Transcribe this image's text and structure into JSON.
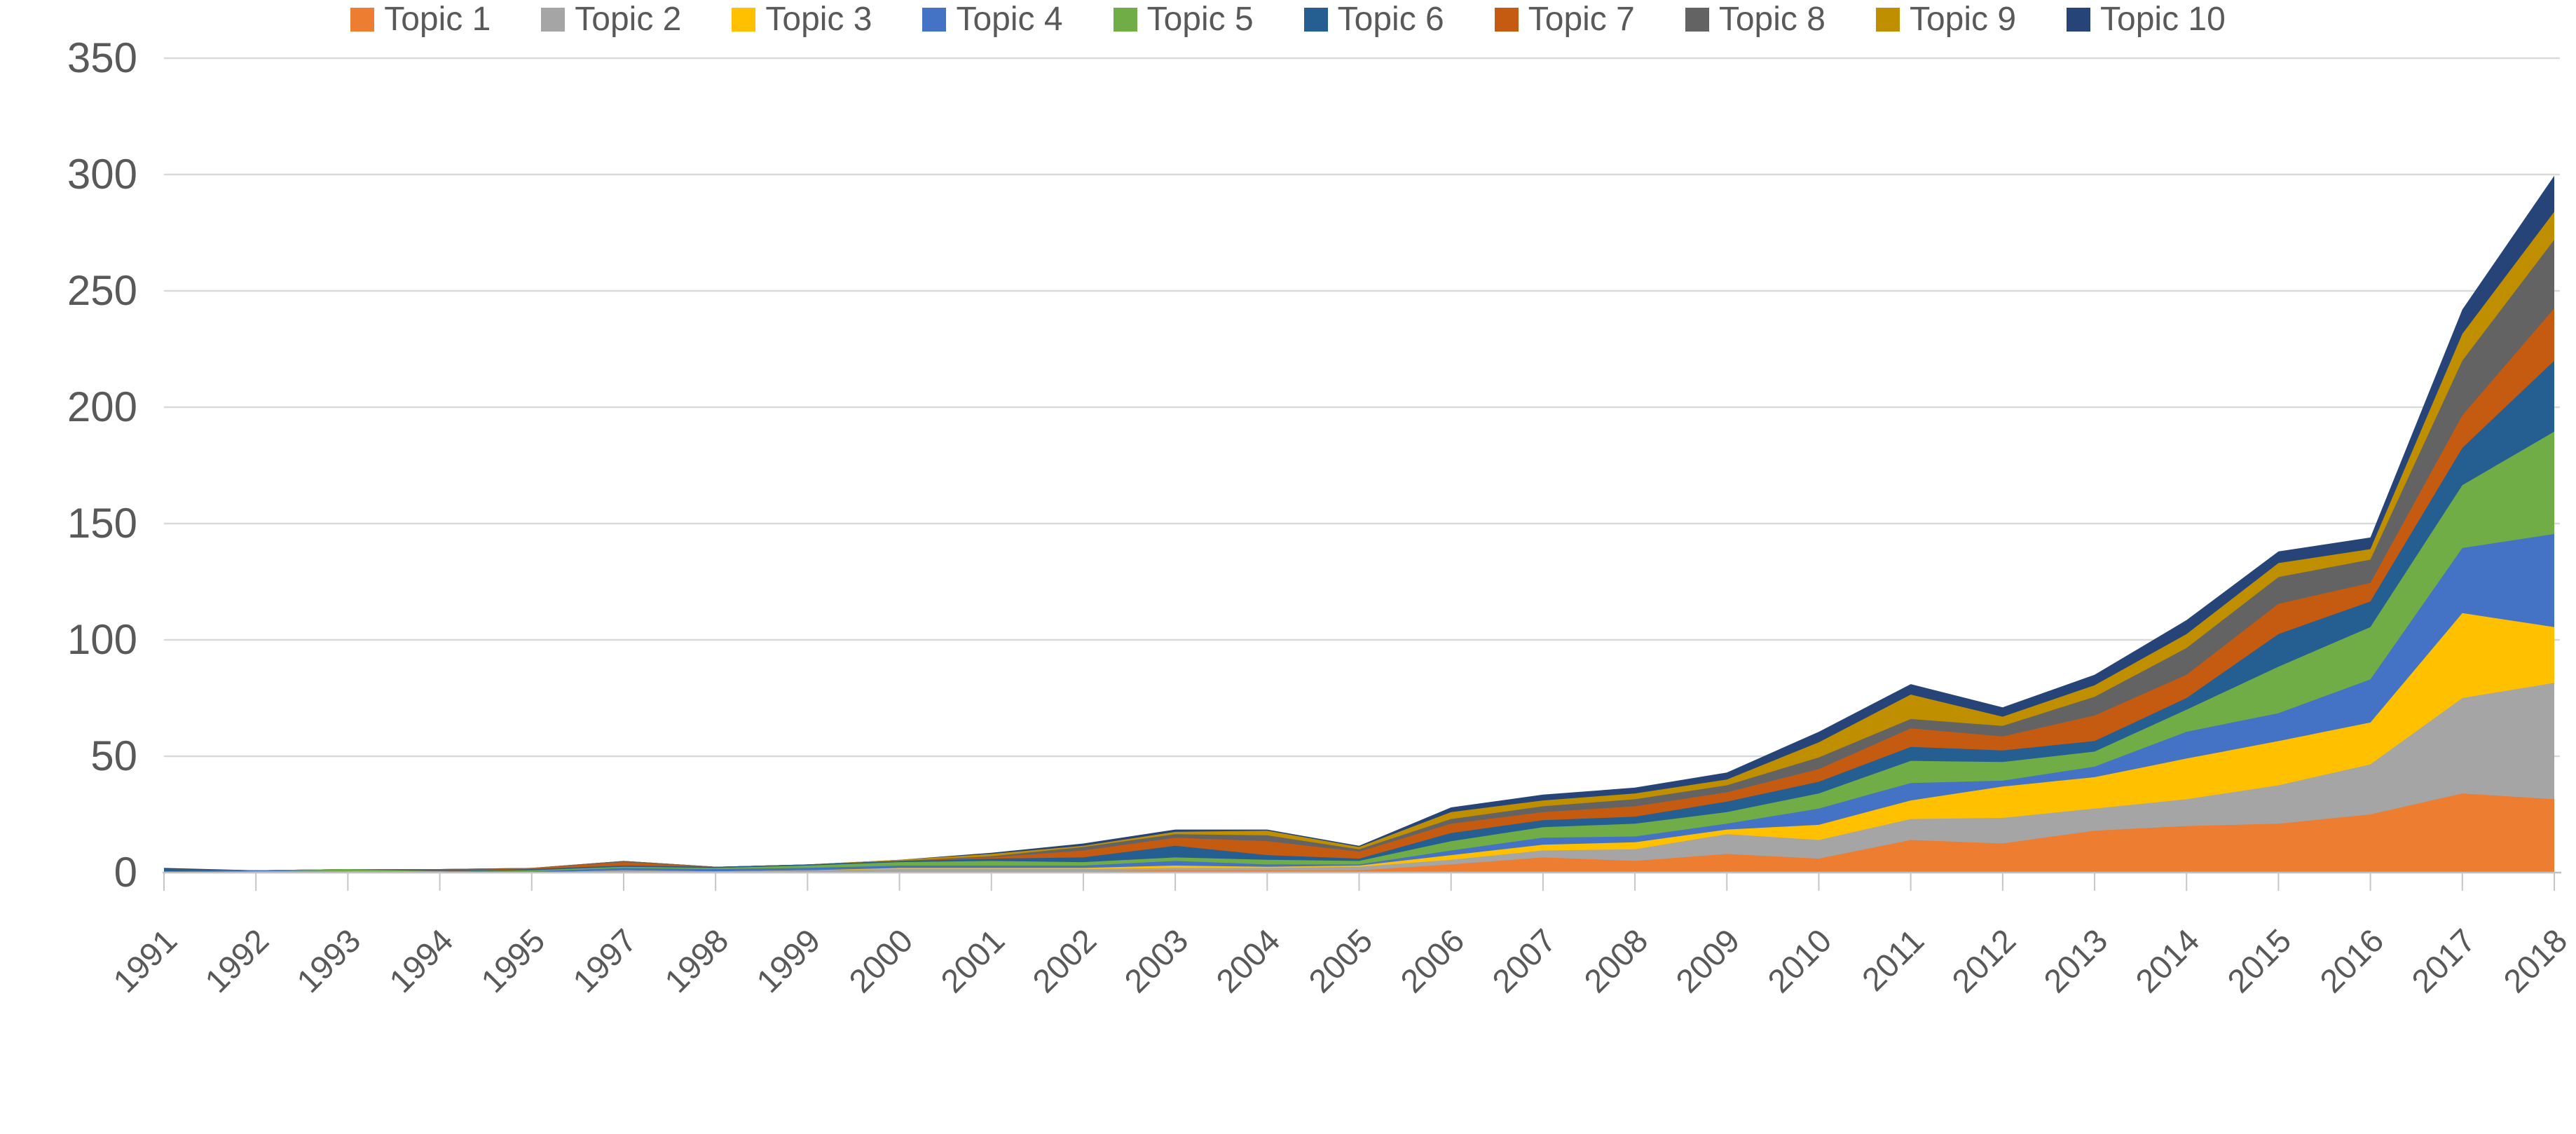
{
  "chart_data": {
    "type": "area",
    "stacked": true,
    "title": "",
    "xlabel": "",
    "ylabel": "",
    "grid": "horizontal",
    "legend_position": "bottom",
    "ylim": [
      0,
      350
    ],
    "ytick_interval": 50,
    "yticks": [
      0,
      50,
      100,
      150,
      200,
      250,
      300,
      350
    ],
    "categories": [
      "1991",
      "1992",
      "1993",
      "1994",
      "1995",
      "1997",
      "1998",
      "1999",
      "2000",
      "2001",
      "2002",
      "2003",
      "2004",
      "2005",
      "2006",
      "2007",
      "2008",
      "2009",
      "2010",
      "2011",
      "2012",
      "2013",
      "2014",
      "2015",
      "2016",
      "2017",
      "2018"
    ],
    "series": [
      {
        "name": "Topic 1",
        "color": "#ED7D31",
        "values": [
          0,
          0,
          0,
          0,
          0,
          0.5,
          0,
          0.5,
          0.5,
          0.5,
          0.5,
          1,
          1,
          1,
          3.5,
          6.5,
          5,
          8,
          6,
          14,
          12.5,
          18,
          20,
          21,
          25,
          34,
          31.5
        ]
      },
      {
        "name": "Topic 2",
        "color": "#A5A5A5",
        "values": [
          0,
          0.5,
          0.5,
          0.5,
          0,
          0.5,
          0.5,
          0.5,
          1,
          1,
          1,
          1,
          1,
          1.5,
          2,
          3,
          5,
          8.5,
          8,
          9,
          11,
          9.5,
          11.5,
          16.5,
          21.5,
          41,
          50
        ]
      },
      {
        "name": "Topic 3",
        "color": "#FFC000",
        "values": [
          0,
          0,
          0,
          0,
          0,
          0,
          0,
          0,
          0.5,
          0.5,
          0.5,
          1,
          0.5,
          0.5,
          2,
          2.5,
          3,
          2,
          6.5,
          8,
          13.5,
          13.5,
          17.5,
          19,
          18,
          36.5,
          24
        ]
      },
      {
        "name": "Topic 4",
        "color": "#4472C4",
        "values": [
          0.5,
          0.5,
          0,
          0,
          0.5,
          1,
          1,
          1,
          1,
          1,
          1,
          2,
          1,
          0.5,
          2,
          3,
          2.5,
          2.5,
          7,
          7.5,
          2.5,
          4.5,
          11.5,
          12,
          18.5,
          28,
          40
        ]
      },
      {
        "name": "Topic 5",
        "color": "#70AD47",
        "values": [
          0,
          0,
          1,
          0,
          0.5,
          0.5,
          0.5,
          1,
          1.5,
          2,
          1.5,
          1.5,
          2,
          1.5,
          4,
          4.5,
          5.5,
          5,
          6.5,
          9.5,
          8,
          6.5,
          9.5,
          20,
          22.5,
          27,
          44
        ]
      },
      {
        "name": "Topic 6",
        "color": "#255E91",
        "values": [
          1,
          0,
          0,
          0,
          0.5,
          0.5,
          0.5,
          0.5,
          0.5,
          1,
          2,
          5,
          2,
          1,
          3.5,
          3,
          3,
          4.5,
          5,
          6,
          5,
          4.5,
          5,
          14,
          11,
          16,
          30.5
        ]
      },
      {
        "name": "Topic 7",
        "color": "#C55A11",
        "values": [
          0,
          0,
          0,
          0,
          0.5,
          1.5,
          0,
          0,
          0,
          0.5,
          3,
          3.5,
          6,
          3,
          4,
          3.5,
          4.5,
          4,
          5.5,
          8,
          6,
          11,
          10,
          13,
          8,
          14,
          22.5
        ]
      },
      {
        "name": "Topic 8",
        "color": "#636363",
        "values": [
          0,
          0,
          0,
          1,
          0,
          0.5,
          0,
          0,
          0,
          0.5,
          1.5,
          1.5,
          2.5,
          1,
          2,
          2.5,
          3,
          3,
          5,
          4,
          4.5,
          8,
          11.5,
          11.5,
          10,
          23.5,
          29.5
        ]
      },
      {
        "name": "Topic 9",
        "color": "#BF8F00",
        "values": [
          0,
          0,
          0,
          0,
          0,
          0,
          0,
          0,
          0.5,
          1,
          0.5,
          1,
          2,
          1,
          3,
          2.5,
          2.5,
          2.5,
          6.5,
          10.5,
          4,
          5,
          6,
          6,
          4.5,
          11.5,
          12
        ]
      },
      {
        "name": "Topic 10",
        "color": "#264478",
        "values": [
          0.5,
          0,
          0,
          0,
          0,
          0,
          0,
          0,
          0,
          0.5,
          1,
          1,
          0.5,
          0.5,
          2,
          2.5,
          2.5,
          3,
          4.5,
          4.5,
          4,
          4.5,
          6,
          5,
          5,
          10.5,
          15.5
        ]
      }
    ],
    "colors": {
      "background": "#FFFFFF",
      "gridline": "#D9D9D9",
      "axis_line": "#BFBFBF",
      "tick_mark": "#C6C6C6",
      "tick_label_text": "#595959",
      "legend_text": "#595959"
    }
  }
}
